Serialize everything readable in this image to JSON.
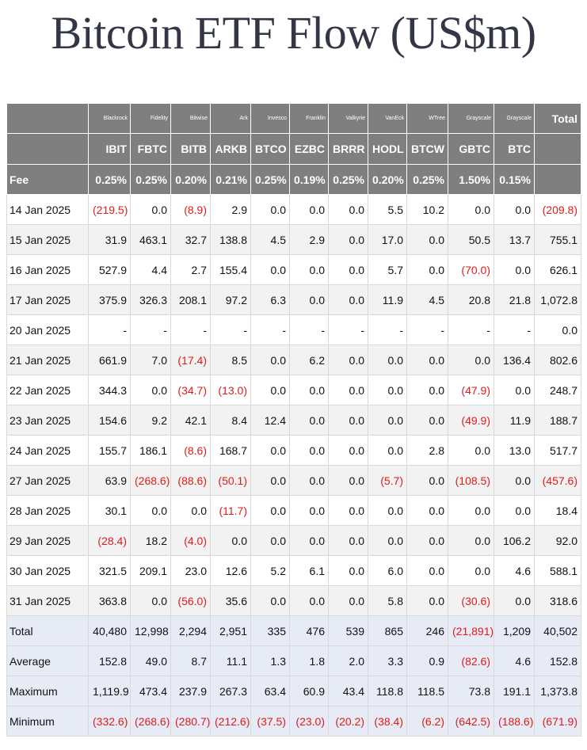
{
  "title": "Bitcoin ETF Flow (US$m)",
  "issuers": [
    "Blackrock",
    "Fidelity",
    "Bitwise",
    "Ark",
    "Invesco",
    "Franklin",
    "Valkyrie",
    "VanEck",
    "WTree",
    "Grayscale",
    "Grayscale"
  ],
  "total_header": "Total",
  "tickers": [
    "IBIT",
    "FBTC",
    "BITB",
    "ARKB",
    "BTCO",
    "EZBC",
    "BRRR",
    "HODL",
    "BTCW",
    "GBTC",
    "BTC"
  ],
  "fee_label": "Fee",
  "fees": [
    "0.25%",
    "0.25%",
    "0.20%",
    "0.21%",
    "0.25%",
    "0.19%",
    "0.25%",
    "0.20%",
    "0.25%",
    "1.50%",
    "0.15%"
  ],
  "rows": [
    {
      "date": "14 Jan 2025",
      "values": [
        "(219.5)",
        "0.0",
        "(8.9)",
        "2.9",
        "0.0",
        "0.0",
        "0.0",
        "5.5",
        "10.2",
        "0.0",
        "0.0",
        "(209.8)"
      ]
    },
    {
      "date": "15 Jan 2025",
      "values": [
        "31.9",
        "463.1",
        "32.7",
        "138.8",
        "4.5",
        "2.9",
        "0.0",
        "17.0",
        "0.0",
        "50.5",
        "13.7",
        "755.1"
      ]
    },
    {
      "date": "16 Jan 2025",
      "values": [
        "527.9",
        "4.4",
        "2.7",
        "155.4",
        "0.0",
        "0.0",
        "0.0",
        "5.7",
        "0.0",
        "(70.0)",
        "0.0",
        "626.1"
      ]
    },
    {
      "date": "17 Jan 2025",
      "values": [
        "375.9",
        "326.3",
        "208.1",
        "97.2",
        "6.3",
        "0.0",
        "0.0",
        "11.9",
        "4.5",
        "20.8",
        "21.8",
        "1,072.8"
      ]
    },
    {
      "date": "20 Jan 2025",
      "values": [
        "-",
        "-",
        "-",
        "-",
        "-",
        "-",
        "-",
        "-",
        "-",
        "-",
        "-",
        "0.0"
      ]
    },
    {
      "date": "21 Jan 2025",
      "values": [
        "661.9",
        "7.0",
        "(17.4)",
        "8.5",
        "0.0",
        "6.2",
        "0.0",
        "0.0",
        "0.0",
        "0.0",
        "136.4",
        "802.6"
      ]
    },
    {
      "date": "22 Jan 2025",
      "values": [
        "344.3",
        "0.0",
        "(34.7)",
        "(13.0)",
        "0.0",
        "0.0",
        "0.0",
        "0.0",
        "0.0",
        "(47.9)",
        "0.0",
        "248.7"
      ]
    },
    {
      "date": "23 Jan 2025",
      "values": [
        "154.6",
        "9.2",
        "42.1",
        "8.4",
        "12.4",
        "0.0",
        "0.0",
        "0.0",
        "0.0",
        "(49.9)",
        "11.9",
        "188.7"
      ]
    },
    {
      "date": "24 Jan 2025",
      "values": [
        "155.7",
        "186.1",
        "(8.6)",
        "168.7",
        "0.0",
        "0.0",
        "0.0",
        "0.0",
        "2.8",
        "0.0",
        "13.0",
        "517.7"
      ]
    },
    {
      "date": "27 Jan 2025",
      "values": [
        "63.9",
        "(268.6)",
        "(88.6)",
        "(50.1)",
        "0.0",
        "0.0",
        "0.0",
        "(5.7)",
        "0.0",
        "(108.5)",
        "0.0",
        "(457.6)"
      ]
    },
    {
      "date": "28 Jan 2025",
      "values": [
        "30.1",
        "0.0",
        "0.0",
        "(11.7)",
        "0.0",
        "0.0",
        "0.0",
        "0.0",
        "0.0",
        "0.0",
        "0.0",
        "18.4"
      ]
    },
    {
      "date": "29 Jan 2025",
      "values": [
        "(28.4)",
        "18.2",
        "(4.0)",
        "0.0",
        "0.0",
        "0.0",
        "0.0",
        "0.0",
        "0.0",
        "0.0",
        "106.2",
        "92.0"
      ]
    },
    {
      "date": "30 Jan 2025",
      "values": [
        "321.5",
        "209.1",
        "23.0",
        "12.6",
        "5.2",
        "6.1",
        "0.0",
        "6.0",
        "0.0",
        "0.0",
        "4.6",
        "588.1"
      ]
    },
    {
      "date": "31 Jan 2025",
      "values": [
        "363.8",
        "0.0",
        "(56.0)",
        "35.6",
        "0.0",
        "0.0",
        "0.0",
        "5.8",
        "0.0",
        "(30.6)",
        "0.0",
        "318.6"
      ]
    }
  ],
  "summary": [
    {
      "label": "Total",
      "values": [
        "40,480",
        "12,998",
        "2,294",
        "2,951",
        "335",
        "476",
        "539",
        "865",
        "246",
        "(21,891)",
        "1,209",
        "40,502"
      ]
    },
    {
      "label": "Average",
      "values": [
        "152.8",
        "49.0",
        "8.7",
        "11.1",
        "1.3",
        "1.8",
        "2.0",
        "3.3",
        "0.9",
        "(82.6)",
        "4.6",
        "152.8"
      ]
    },
    {
      "label": "Maximum",
      "values": [
        "1,119.9",
        "473.4",
        "237.9",
        "267.3",
        "63.4",
        "60.9",
        "43.4",
        "118.8",
        "118.5",
        "73.8",
        "191.1",
        "1,373.8"
      ]
    },
    {
      "label": "Minimum",
      "values": [
        "(332.6)",
        "(268.6)",
        "(280.7)",
        "(212.6)",
        "(37.5)",
        "(23.0)",
        "(20.2)",
        "(38.4)",
        "(6.2)",
        "(642.5)",
        "(188.6)",
        "(671.9)"
      ]
    }
  ],
  "colors": {
    "header_bg": "#7f7f7f",
    "negative": "#e01b1b",
    "summary_bg": "#e6ebf5",
    "title": "#333745"
  }
}
